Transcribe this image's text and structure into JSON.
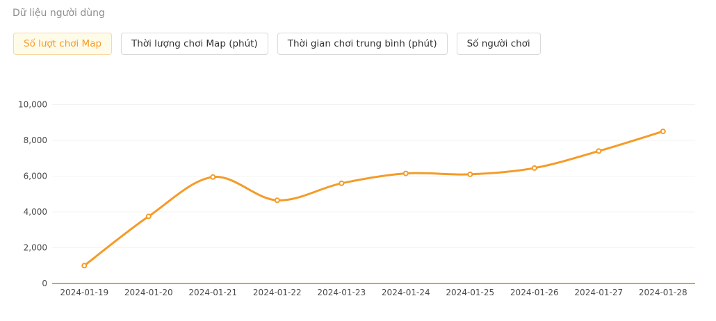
{
  "page": {
    "title": "Dữ liệu người dùng"
  },
  "tabs": {
    "items": [
      {
        "label": "Số lượt chơi Map",
        "selected": true
      },
      {
        "label": "Thời lượng chơi Map (phút)",
        "selected": false
      },
      {
        "label": "Thời gian chơi trung bình (phút)",
        "selected": false
      },
      {
        "label": "Số người chơi",
        "selected": false
      }
    ]
  },
  "colors": {
    "accent_orange": "#f59b27",
    "selected_tab_bg": "#fffbe9",
    "selected_tab_border": "#f8d9a6",
    "tab_border": "#d9d9d9",
    "tab_text": "#333333",
    "title_text": "#8e8e8e",
    "axis_label_text": "#4a4a4a",
    "gridline": "#f3f3f3",
    "marker_fill": "#ffffff"
  },
  "chart_data": {
    "type": "line",
    "title": "",
    "xlabel": "",
    "ylabel": "",
    "categories": [
      "2024-01-19",
      "2024-01-20",
      "2024-01-21",
      "2024-01-22",
      "2024-01-23",
      "2024-01-24",
      "2024-01-25",
      "2024-01-26",
      "2024-01-27",
      "2024-01-28"
    ],
    "series": [
      {
        "name": "Số lượt chơi Map",
        "values": [
          1000,
          3750,
          5950,
          4650,
          5600,
          6150,
          6100,
          6450,
          7400,
          8500
        ]
      }
    ],
    "ylim": [
      0,
      10000
    ],
    "y_ticks": [
      0,
      2000,
      4000,
      6000,
      8000,
      10000
    ],
    "y_tick_labels": [
      "0",
      "2,000",
      "4,000",
      "6,000",
      "8,000",
      "10,000"
    ],
    "grid": "horizontal-light",
    "legend": "none",
    "smooth": true,
    "marker": "hollow-circle",
    "line_color": "#f59b27",
    "axis_line_color": "#f59b27"
  }
}
